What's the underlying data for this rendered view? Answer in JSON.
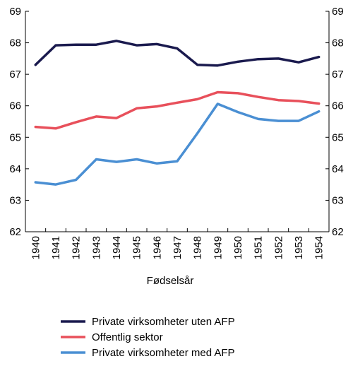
{
  "chart_data": {
    "type": "line",
    "title": "",
    "xlabel": "Fødselsår",
    "ylabel": "",
    "ylim": [
      62,
      69
    ],
    "yticks": [
      62,
      63,
      64,
      65,
      66,
      67,
      68,
      69
    ],
    "grid": false,
    "legend_placement": "bottom",
    "x": [
      "1940",
      "1941",
      "1942",
      "1943",
      "1944",
      "1945",
      "1946",
      "1947",
      "1948",
      "1949",
      "1950",
      "1951",
      "1952",
      "1953",
      "1954"
    ],
    "series": [
      {
        "name": "Private virksomheter uten AFP",
        "color": "#1a1a4e",
        "values": [
          67.3,
          67.92,
          67.94,
          67.94,
          68.06,
          67.92,
          67.96,
          67.82,
          67.3,
          67.28,
          67.4,
          67.48,
          67.5,
          67.38,
          67.55
        ]
      },
      {
        "name": "Offentlig sektor",
        "color": "#e8505b",
        "values": [
          65.33,
          65.28,
          65.48,
          65.66,
          65.61,
          65.92,
          65.98,
          66.1,
          66.21,
          66.43,
          66.4,
          66.28,
          66.18,
          66.15,
          66.07
        ]
      },
      {
        "name": "Private virksomheter med AFP",
        "color": "#4a8fd3",
        "values": [
          63.57,
          63.5,
          63.65,
          64.3,
          64.22,
          64.3,
          64.17,
          64.24,
          65.13,
          66.06,
          65.8,
          65.58,
          65.52,
          65.52,
          65.82
        ]
      }
    ]
  }
}
